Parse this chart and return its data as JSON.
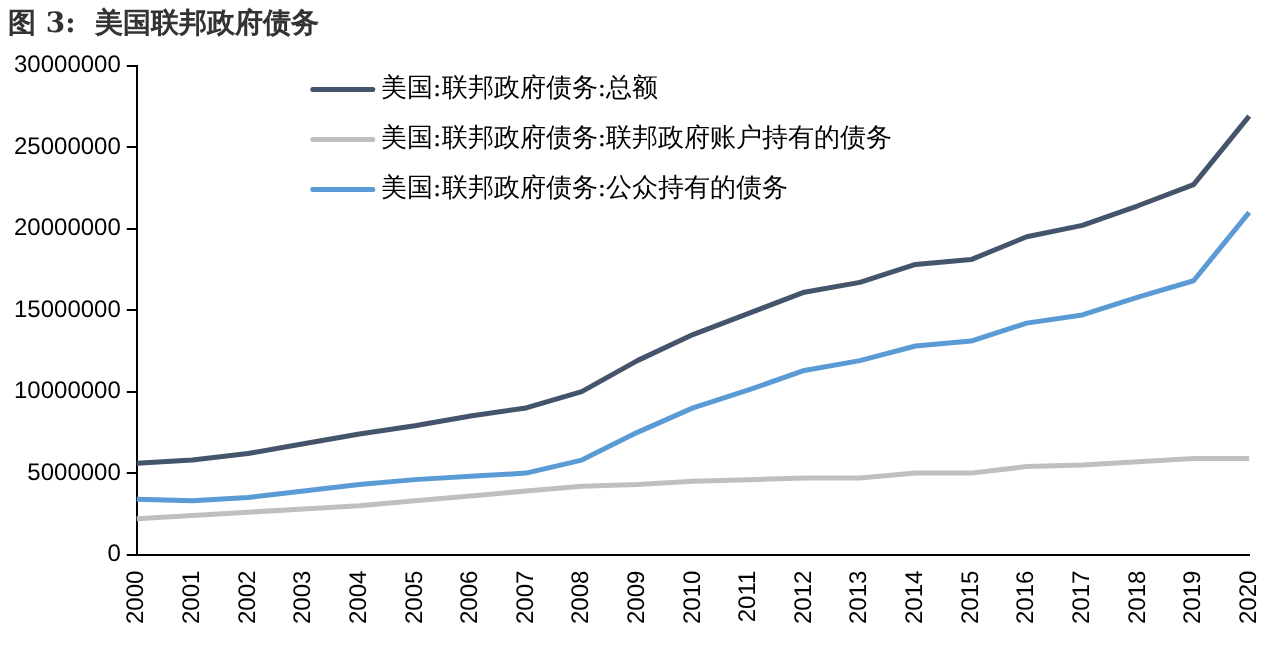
{
  "chart_data": {
    "type": "line",
    "title": "图 3:  美国联邦政府债务",
    "categories": [
      "2000",
      "2001",
      "2002",
      "2003",
      "2004",
      "2005",
      "2006",
      "2007",
      "2008",
      "2009",
      "2010",
      "2011",
      "2012",
      "2013",
      "2014",
      "2015",
      "2016",
      "2017",
      "2018",
      "2019",
      "2020"
    ],
    "series": [
      {
        "name": "美国:联邦政府债务:总额",
        "color": "#44546a",
        "values": [
          5600000,
          5800000,
          6200000,
          6800000,
          7400000,
          7900000,
          8500000,
          9000000,
          10000000,
          11900000,
          13500000,
          14800000,
          16100000,
          16700000,
          17800000,
          18100000,
          19500000,
          20200000,
          21400000,
          22700000,
          26900000
        ]
      },
      {
        "name": "美国:联邦政府债务:联邦政府账户持有的债务",
        "color": "#bfbfbf",
        "values": [
          2200000,
          2400000,
          2600000,
          2800000,
          3000000,
          3300000,
          3600000,
          3900000,
          4200000,
          4300000,
          4500000,
          4600000,
          4700000,
          4700000,
          5000000,
          5000000,
          5400000,
          5500000,
          5700000,
          5900000,
          5900000
        ]
      },
      {
        "name": "美国:联邦政府债务:公众持有的债务",
        "color": "#5b9bd5",
        "values": [
          3400000,
          3300000,
          3500000,
          3900000,
          4300000,
          4600000,
          4800000,
          5000000,
          5800000,
          7500000,
          9000000,
          10100000,
          11300000,
          11900000,
          12800000,
          13100000,
          14200000,
          14700000,
          15800000,
          16800000,
          21000000
        ]
      }
    ],
    "ylim": [
      0,
      30000000
    ],
    "yticks": [
      0,
      5000000,
      10000000,
      15000000,
      20000000,
      25000000,
      30000000
    ],
    "grid": false,
    "legend": "top left",
    "marker": "none",
    "line_style": "solid"
  }
}
